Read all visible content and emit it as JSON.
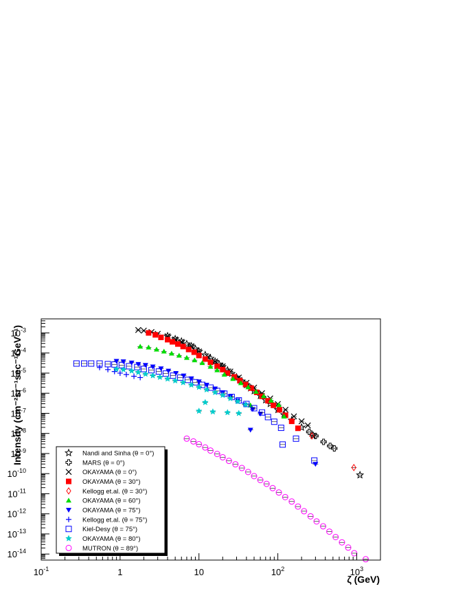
{
  "chart_data": {
    "type": "scatter",
    "x_scale": "log",
    "y_scale": "log",
    "xlim": [
      0.1,
      2000
    ],
    "ylim": [
      5e-15,
      0.005
    ],
    "xlabel": "ζ (GeV)",
    "ylabel": "Intensity (cm⁻²sr⁻¹sec⁻¹GeV⁻¹)",
    "x_ticks": [
      {
        "value": 0.1,
        "base": "10",
        "exp": "-1"
      },
      {
        "value": 1,
        "base": "1",
        "exp": ""
      },
      {
        "value": 10,
        "base": "10",
        "exp": ""
      },
      {
        "value": 100,
        "base": "10",
        "exp": "2"
      },
      {
        "value": 1000,
        "base": "10",
        "exp": "3"
      }
    ],
    "y_ticks": [
      {
        "value": 0.001,
        "exp": "-3"
      },
      {
        "value": 0.0001,
        "exp": "-4"
      },
      {
        "value": 1e-05,
        "exp": "-5"
      },
      {
        "value": 1e-06,
        "exp": "-6"
      },
      {
        "value": 1e-07,
        "exp": "-7"
      },
      {
        "value": 1e-08,
        "exp": "-8"
      },
      {
        "value": 1e-09,
        "exp": "-9"
      },
      {
        "value": 1e-10,
        "exp": "-10"
      },
      {
        "value": 1e-11,
        "exp": "-11"
      },
      {
        "value": 1e-12,
        "exp": "-12"
      },
      {
        "value": 1e-13,
        "exp": "-13"
      },
      {
        "value": 1e-14,
        "exp": "-14"
      }
    ],
    "grid": false,
    "legend_position": "bottom-left",
    "series": [
      {
        "name": "Nandi and Sinha (θ = 0°)",
        "marker": "star",
        "color": "#000000",
        "points": [
          [
            4,
            0.0007
          ],
          [
            5,
            0.0005
          ],
          [
            6,
            0.00038
          ],
          [
            7,
            0.00028
          ],
          [
            8,
            0.00022
          ],
          [
            9,
            0.00016
          ],
          [
            10,
            0.00012
          ],
          [
            12,
            8e-05
          ],
          [
            14,
            5.4e-05
          ],
          [
            16,
            3.8e-05
          ],
          [
            18,
            2.8e-05
          ],
          [
            20,
            2.1e-05
          ],
          [
            23,
            1.4e-05
          ],
          [
            26,
            9.5e-06
          ],
          [
            30,
            6.3e-06
          ],
          [
            35,
            4e-06
          ],
          [
            40,
            2.6e-06
          ],
          [
            45,
            1.8e-06
          ],
          [
            50,
            1.3e-06
          ],
          [
            60,
            7.5e-07
          ],
          [
            70,
            4.6e-07
          ],
          [
            80,
            3e-07
          ],
          [
            100,
            1.5e-07
          ],
          [
            120,
            8.5e-08
          ],
          [
            150,
            4.5e-08
          ],
          [
            200,
            2e-08
          ],
          [
            280,
            8e-09
          ],
          [
            1100,
            8.5e-11
          ]
        ]
      },
      {
        "name": "MARS (θ = 0°)",
        "marker": "open-cross",
        "color": "#000000",
        "points": [
          [
            250,
            1.2e-08
          ],
          [
            300,
            7.5e-09
          ],
          [
            380,
            3.8e-09
          ],
          [
            460,
            2.4e-09
          ],
          [
            520,
            1.8e-09
          ]
        ]
      },
      {
        "name": "OKAYAMA (θ = 0°)",
        "marker": "x",
        "color": "#000000",
        "points": [
          [
            1.7,
            0.0014
          ],
          [
            2.0,
            0.0013
          ],
          [
            2.5,
            0.0011
          ],
          [
            3,
            0.0009
          ],
          [
            4,
            0.00068
          ],
          [
            5,
            0.00048
          ],
          [
            6,
            0.00036
          ],
          [
            8,
            0.00022
          ],
          [
            10,
            0.00012
          ],
          [
            13,
            6.5e-05
          ],
          [
            16,
            3.8e-05
          ],
          [
            20,
            2.2e-05
          ],
          [
            25,
            1.2e-05
          ],
          [
            32,
            6e-06
          ],
          [
            40,
            3.3e-06
          ],
          [
            50,
            1.9e-06
          ],
          [
            63,
            1e-06
          ],
          [
            80,
            5.5e-07
          ],
          [
            100,
            2.9e-07
          ],
          [
            125,
            1.5e-07
          ],
          [
            160,
            7e-08
          ],
          [
            200,
            4e-08
          ],
          [
            240,
            2.5e-08
          ]
        ]
      },
      {
        "name": "OKAYAMA (θ = 30°)",
        "marker": "filled-square",
        "color": "#ff0000",
        "points": [
          [
            2.3,
            0.001
          ],
          [
            2.8,
            0.0008
          ],
          [
            3.3,
            0.0006
          ],
          [
            4,
            0.00046
          ],
          [
            4.6,
            0.00036
          ],
          [
            5.4,
            0.00028
          ],
          [
            6.3,
            0.00021
          ],
          [
            7.4,
            0.00015
          ],
          [
            8.7,
            0.00011
          ],
          [
            10,
            7.5e-05
          ],
          [
            12,
            5e-05
          ],
          [
            14,
            3.4e-05
          ],
          [
            17,
            2.2e-05
          ],
          [
            20,
            1.5e-05
          ],
          [
            23,
            1e-05
          ],
          [
            28,
            6.5e-06
          ],
          [
            33,
            4.2e-06
          ],
          [
            39,
            2.7e-06
          ],
          [
            46,
            1.8e-06
          ],
          [
            54,
            1.1e-06
          ],
          [
            63,
            7e-07
          ],
          [
            75,
            4.2e-07
          ],
          [
            88,
            2.5e-07
          ],
          [
            105,
            1.5e-07
          ],
          [
            125,
            8e-08
          ],
          [
            150,
            4e-08
          ],
          [
            180,
            1.8e-08
          ]
        ]
      },
      {
        "name": "Kellogg et.al. (θ = 30°)",
        "marker": "open-diamond",
        "color": "#ff0000",
        "points": [
          [
            270,
            7.5e-09
          ],
          [
            920,
            2e-10
          ]
        ]
      },
      {
        "name": "OKAYAMA (θ = 60°)",
        "marker": "filled-triangle-up",
        "color": "#00dd00",
        "points": [
          [
            1.8,
            0.00021
          ],
          [
            2.3,
            0.00019
          ],
          [
            2.9,
            0.00015
          ],
          [
            3.6,
            0.00012
          ],
          [
            4.5,
            9.5e-05
          ],
          [
            5.6,
            7.5e-05
          ],
          [
            7,
            5.8e-05
          ],
          [
            8.8,
            4.4e-05
          ],
          [
            11,
            3.2e-05
          ],
          [
            14,
            2.1e-05
          ],
          [
            17,
            1.4e-05
          ],
          [
            21,
            8.5e-06
          ],
          [
            27,
            5.2e-06
          ],
          [
            34,
            3.2e-06
          ],
          [
            42,
            2e-06
          ],
          [
            53,
            1.2e-06
          ],
          [
            66,
            7.2e-07
          ],
          [
            82,
            4.3e-07
          ],
          [
            103,
            2.6e-07
          ],
          [
            45,
            2.5e-07
          ],
          [
            120,
            7e-08
          ]
        ]
      },
      {
        "name": "OKAYAMA (θ = 75°)",
        "marker": "filled-triangle-down",
        "color": "#0000ff",
        "points": [
          [
            0.9,
            4e-05
          ],
          [
            1.1,
            3.8e-05
          ],
          [
            1.4,
            3.3e-05
          ],
          [
            1.7,
            2.8e-05
          ],
          [
            2.1,
            2.5e-05
          ],
          [
            2.6,
            2.1e-05
          ],
          [
            3.3,
            1.7e-05
          ],
          [
            4.1,
            1.3e-05
          ],
          [
            5.1,
            1e-05
          ],
          [
            6.4,
            7.5e-06
          ],
          [
            8,
            5.4e-06
          ],
          [
            10,
            3.8e-06
          ],
          [
            12.5,
            2.6e-06
          ],
          [
            16,
            1.7e-06
          ],
          [
            20,
            1.1e-06
          ],
          [
            25,
            7e-07
          ],
          [
            31,
            4.4e-07
          ],
          [
            38,
            2.7e-07
          ],
          [
            48,
            1.6e-07
          ],
          [
            60,
            9.5e-08
          ],
          [
            45,
            1.5e-08
          ],
          [
            300,
            3e-10
          ]
        ]
      },
      {
        "name": "Kellogg et.al. (θ = 75°)",
        "marker": "plus",
        "color": "#0000ff",
        "points": [
          [
            0.55,
            1.9e-05
          ],
          [
            0.7,
            1.5e-05
          ],
          [
            0.85,
            1.2e-05
          ],
          [
            1.0,
            1e-05
          ],
          [
            1.2,
            8.5e-06
          ],
          [
            1.5,
            7e-06
          ],
          [
            1.8,
            6e-06
          ]
        ]
      },
      {
        "name": "Kiel-Desy (θ = 75°)",
        "marker": "open-square",
        "color": "#0000ff",
        "points": [
          [
            0.28,
            3e-05
          ],
          [
            0.35,
            3e-05
          ],
          [
            0.43,
            3e-05
          ],
          [
            0.55,
            3e-05
          ],
          [
            0.7,
            2.8e-05
          ],
          [
            0.85,
            2.7e-05
          ],
          [
            1.05,
            2.5e-05
          ],
          [
            1.3,
            2.2e-05
          ],
          [
            1.65,
            2e-05
          ],
          [
            2.0,
            1.6e-05
          ],
          [
            2.5,
            1.4e-05
          ],
          [
            3.1,
            1.2e-05
          ],
          [
            3.8,
            9.5e-06
          ],
          [
            4.7,
            7.5e-06
          ],
          [
            5.8,
            6e-06
          ],
          [
            7.2,
            4.6e-06
          ],
          [
            9,
            3.5e-06
          ],
          [
            11,
            2.6e-06
          ],
          [
            14,
            1.9e-06
          ],
          [
            17,
            1.3e-06
          ],
          [
            21,
            9.5e-07
          ],
          [
            26,
            6.5e-07
          ],
          [
            32,
            4.4e-07
          ],
          [
            40,
            2.9e-07
          ],
          [
            50,
            1.8e-07
          ],
          [
            63,
            1.1e-07
          ],
          [
            75,
            6.5e-08
          ],
          [
            90,
            3.8e-08
          ],
          [
            110,
            1.9e-08
          ],
          [
            170,
            5.5e-09
          ],
          [
            115,
            2.8e-09
          ],
          [
            290,
            4.5e-10
          ]
        ]
      },
      {
        "name": "OKAYAMA (θ = 80°)",
        "marker": "filled-star",
        "color": "#00cccc",
        "points": [
          [
            0.9,
            1.6e-05
          ],
          [
            1.1,
            1.5e-05
          ],
          [
            1.4,
            1.3e-05
          ],
          [
            1.7,
            1.1e-05
          ],
          [
            2.1,
            9e-06
          ],
          [
            2.6,
            7.5e-06
          ],
          [
            3.2,
            6.3e-06
          ],
          [
            4,
            5.2e-06
          ],
          [
            5,
            4.2e-06
          ],
          [
            6.3,
            3.4e-06
          ],
          [
            8,
            2.6e-06
          ],
          [
            10,
            2e-06
          ],
          [
            12.5,
            1.5e-06
          ],
          [
            16,
            1.1e-06
          ],
          [
            20,
            8e-07
          ],
          [
            25,
            5.5e-07
          ],
          [
            31,
            3.9e-07
          ],
          [
            39,
            2.7e-07
          ],
          [
            10,
            1.3e-07
          ],
          [
            15,
            1.2e-07
          ],
          [
            23,
            1.1e-07
          ],
          [
            32,
            1e-07
          ],
          [
            12,
            3.5e-07
          ]
        ]
      },
      {
        "name": "MUTRON (θ = 89°)",
        "marker": "open-circle",
        "color": "#ff00ff",
        "points": [
          [
            7,
            5.5e-09
          ],
          [
            8.5,
            4e-09
          ],
          [
            10,
            2.9e-09
          ],
          [
            12,
            2e-09
          ],
          [
            14,
            1.4e-09
          ],
          [
            17,
            9.5e-10
          ],
          [
            20,
            6.5e-10
          ],
          [
            24,
            4.3e-10
          ],
          [
            29,
            2.9e-10
          ],
          [
            35,
            1.9e-10
          ],
          [
            42,
            1.2e-10
          ],
          [
            50,
            7.5e-11
          ],
          [
            60,
            4.8e-11
          ],
          [
            72,
            3.1e-11
          ],
          [
            86,
            1.9e-11
          ],
          [
            103,
            1.15e-11
          ],
          [
            124,
            6.8e-12
          ],
          [
            150,
            4.1e-12
          ],
          [
            180,
            2.3e-12
          ],
          [
            215,
            1.35e-12
          ],
          [
            260,
            7.5e-13
          ],
          [
            310,
            4.2e-13
          ],
          [
            375,
            2.4e-13
          ],
          [
            450,
            1.3e-13
          ],
          [
            540,
            7e-14
          ],
          [
            650,
            3.8e-14
          ],
          [
            780,
            2.1e-14
          ],
          [
            930,
            1.1e-14
          ],
          [
            1300,
            5.5e-15
          ]
        ]
      }
    ]
  }
}
